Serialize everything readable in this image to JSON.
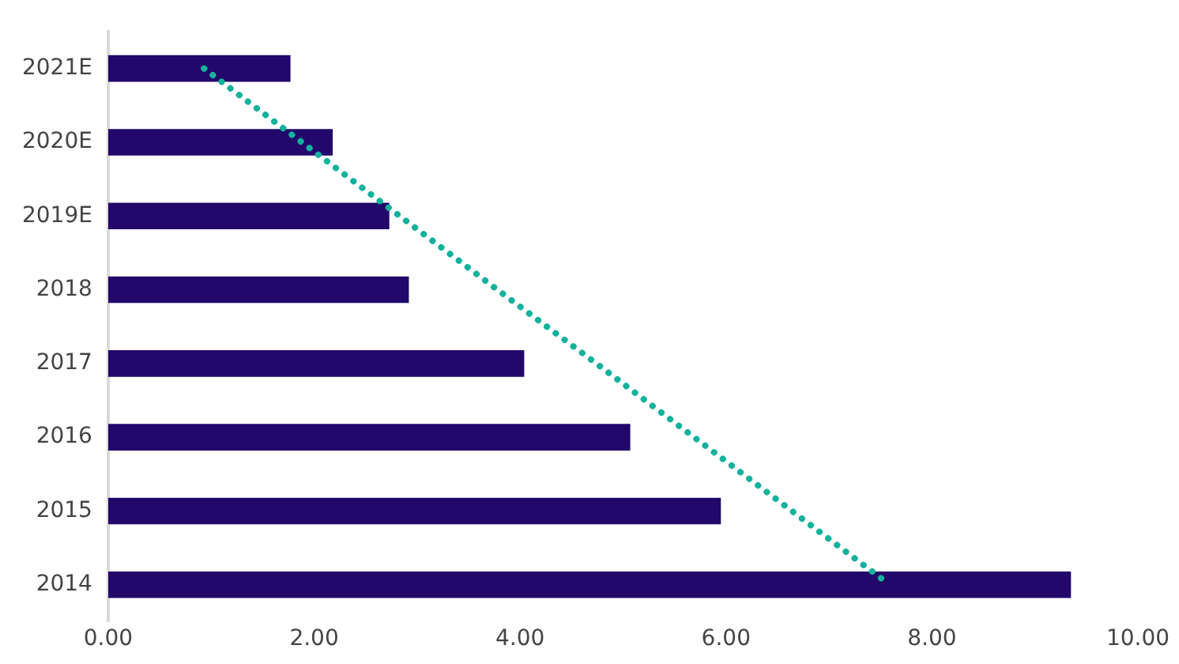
{
  "chart_data": {
    "type": "bar",
    "orientation": "horizontal",
    "categories": [
      "2021E",
      "2020E",
      "2019E",
      "2018",
      "2017",
      "2016",
      "2015",
      "2014"
    ],
    "series": [
      {
        "color": "#22086b",
        "values": [
          1.77,
          2.18,
          2.73,
          2.92,
          4.04,
          5.07,
          5.95,
          9.35
        ]
      },
      {
        "type": "line",
        "color": "#14b19c",
        "line_style": "dotted",
        "marker": "none",
        "values": [
          0.93,
          1.88,
          2.83,
          3.78,
          4.74,
          5.69,
          6.64,
          7.59
        ]
      }
    ],
    "xlim": [
      0,
      10
    ],
    "xticks": [
      {
        "value": 0,
        "label": "0.00"
      },
      {
        "value": 2,
        "label": "2.00"
      },
      {
        "value": 4,
        "label": "4.00"
      },
      {
        "value": 6,
        "label": "6.00"
      },
      {
        "value": 8,
        "label": "8.00"
      },
      {
        "value": 10,
        "label": "10.00"
      }
    ],
    "grid": false,
    "legend": false
  }
}
